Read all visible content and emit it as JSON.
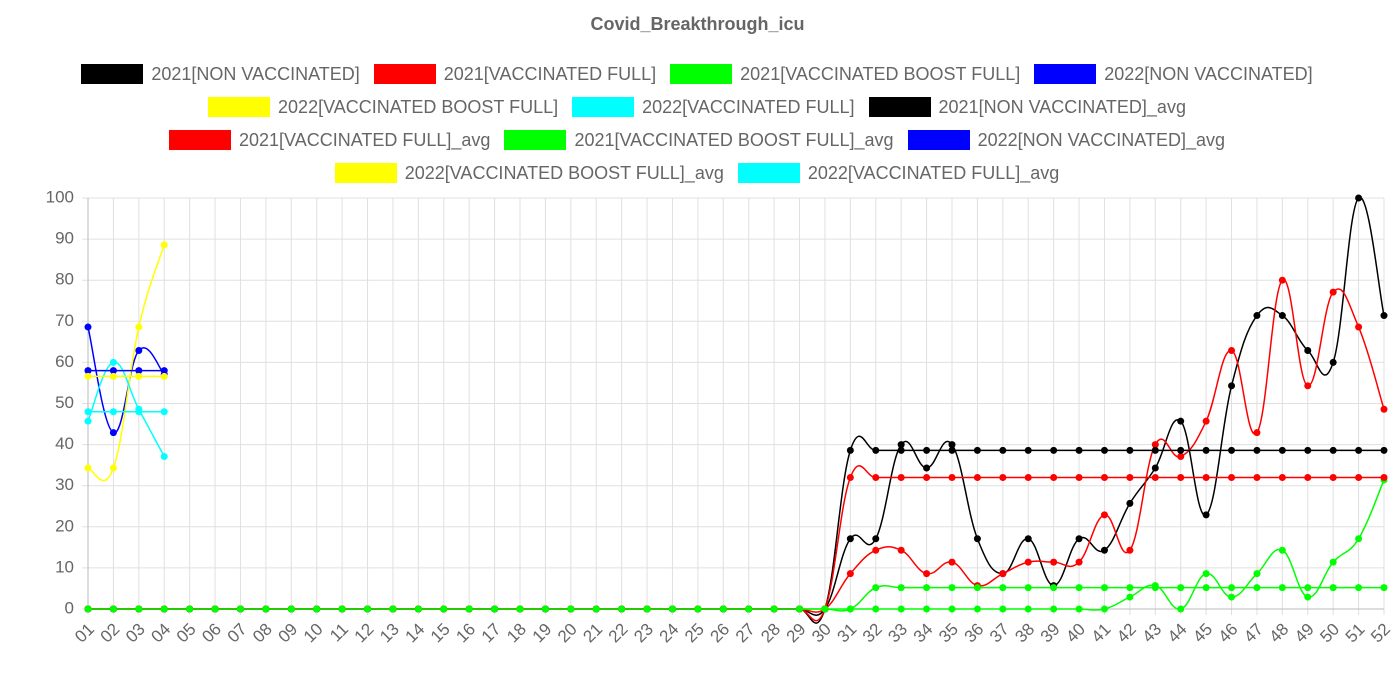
{
  "chart_data": {
    "type": "line",
    "title": "Covid_Breakthrough_icu",
    "categories": [
      "01",
      "02",
      "03",
      "04",
      "05",
      "06",
      "07",
      "08",
      "09",
      "10",
      "11",
      "12",
      "13",
      "14",
      "15",
      "16",
      "17",
      "18",
      "19",
      "20",
      "21",
      "22",
      "23",
      "24",
      "25",
      "26",
      "27",
      "28",
      "29",
      "30",
      "31",
      "32",
      "33",
      "34",
      "35",
      "36",
      "37",
      "38",
      "39",
      "40",
      "41",
      "42",
      "43",
      "44",
      "45",
      "46",
      "47",
      "48",
      "49",
      "50",
      "51",
      "52"
    ],
    "ylim": [
      0,
      100
    ],
    "yticks": [
      0,
      10,
      20,
      30,
      40,
      50,
      60,
      70,
      80,
      90,
      100
    ],
    "grid": true,
    "legend": "top",
    "series": [
      {
        "name": "2021[NON VACCINATED]",
        "color": "#000000",
        "values": [
          0,
          0,
          0,
          0,
          0,
          0,
          0,
          0,
          0,
          0,
          0,
          0,
          0,
          0,
          0,
          0,
          0,
          0,
          0,
          0,
          0,
          0,
          0,
          0,
          0,
          0,
          0,
          0,
          0,
          0,
          17.1,
          17.1,
          40,
          34.3,
          40,
          17.1,
          8.6,
          17.1,
          5.7,
          17.1,
          14.3,
          25.7,
          34.3,
          45.7,
          22.9,
          54.3,
          71.4,
          71.4,
          62.9,
          60,
          100,
          71.4
        ]
      },
      {
        "name": "2021[VACCINATED FULL]",
        "color": "#ff0000",
        "values": [
          0,
          0,
          0,
          0,
          0,
          0,
          0,
          0,
          0,
          0,
          0,
          0,
          0,
          0,
          0,
          0,
          0,
          0,
          0,
          0,
          0,
          0,
          0,
          0,
          0,
          0,
          0,
          0,
          0,
          0,
          8.6,
          14.3,
          14.3,
          8.6,
          11.4,
          5.7,
          8.6,
          11.4,
          11.4,
          11.4,
          22.9,
          14.3,
          40,
          37.1,
          45.7,
          62.9,
          42.9,
          80,
          54.3,
          77.1,
          68.6,
          48.6
        ]
      },
      {
        "name": "2021[VACCINATED BOOST FULL]",
        "color": "#00ff00",
        "values": [
          0,
          0,
          0,
          0,
          0,
          0,
          0,
          0,
          0,
          0,
          0,
          0,
          0,
          0,
          0,
          0,
          0,
          0,
          0,
          0,
          0,
          0,
          0,
          0,
          0,
          0,
          0,
          0,
          0,
          0,
          0,
          0,
          0,
          0,
          0,
          0,
          0,
          0,
          0,
          0,
          0,
          2.9,
          5.7,
          0,
          8.6,
          2.9,
          8.6,
          14.3,
          2.9,
          11.4,
          17.1,
          31.4
        ]
      },
      {
        "name": "2022[NON VACCINATED]",
        "color": "#0000ff",
        "values": [
          68.6,
          42.9,
          62.9,
          57.1,
          null,
          null,
          null,
          null,
          null,
          null,
          null,
          null,
          null,
          null,
          null,
          null,
          null,
          null,
          null,
          null,
          null,
          null,
          null,
          null,
          null,
          null,
          null,
          null,
          null,
          null,
          null,
          null,
          null,
          null,
          null,
          null,
          null,
          null,
          null,
          null,
          null,
          null,
          null,
          null,
          null,
          null,
          null,
          null,
          null,
          null,
          null,
          null
        ]
      },
      {
        "name": "2022[VACCINATED BOOST FULL]",
        "color": "#ffff00",
        "values": [
          34.3,
          34.3,
          68.6,
          88.6,
          null,
          null,
          null,
          null,
          null,
          null,
          null,
          null,
          null,
          null,
          null,
          null,
          null,
          null,
          null,
          null,
          null,
          null,
          null,
          null,
          null,
          null,
          null,
          null,
          null,
          null,
          null,
          null,
          null,
          null,
          null,
          null,
          null,
          null,
          null,
          null,
          null,
          null,
          null,
          null,
          null,
          null,
          null,
          null,
          null,
          null,
          null,
          null
        ]
      },
      {
        "name": "2022[VACCINATED FULL]",
        "color": "#00ffff",
        "values": [
          45.7,
          60,
          48.6,
          37.1,
          null,
          null,
          null,
          null,
          null,
          null,
          null,
          null,
          null,
          null,
          null,
          null,
          null,
          null,
          null,
          null,
          null,
          null,
          null,
          null,
          null,
          null,
          null,
          null,
          null,
          null,
          null,
          null,
          null,
          null,
          null,
          null,
          null,
          null,
          null,
          null,
          null,
          null,
          null,
          null,
          null,
          null,
          null,
          null,
          null,
          null,
          null,
          null
        ]
      },
      {
        "name": "2021[NON VACCINATED]_avg",
        "color": "#000000",
        "values": [
          0,
          0,
          0,
          0,
          0,
          0,
          0,
          0,
          0,
          0,
          0,
          0,
          0,
          0,
          0,
          0,
          0,
          0,
          0,
          0,
          0,
          0,
          0,
          0,
          0,
          0,
          0,
          0,
          0,
          0,
          38.6,
          38.6,
          38.6,
          38.6,
          38.6,
          38.6,
          38.6,
          38.6,
          38.6,
          38.6,
          38.6,
          38.6,
          38.6,
          38.6,
          38.6,
          38.6,
          38.6,
          38.6,
          38.6,
          38.6,
          38.6,
          38.6
        ]
      },
      {
        "name": "2021[VACCINATED FULL]_avg",
        "color": "#ff0000",
        "values": [
          0,
          0,
          0,
          0,
          0,
          0,
          0,
          0,
          0,
          0,
          0,
          0,
          0,
          0,
          0,
          0,
          0,
          0,
          0,
          0,
          0,
          0,
          0,
          0,
          0,
          0,
          0,
          0,
          0,
          0,
          32,
          32,
          32,
          32,
          32,
          32,
          32,
          32,
          32,
          32,
          32,
          32,
          32,
          32,
          32,
          32,
          32,
          32,
          32,
          32,
          32,
          32
        ]
      },
      {
        "name": "2021[VACCINATED BOOST FULL]_avg",
        "color": "#00ff00",
        "values": [
          0,
          0,
          0,
          0,
          0,
          0,
          0,
          0,
          0,
          0,
          0,
          0,
          0,
          0,
          0,
          0,
          0,
          0,
          0,
          0,
          0,
          0,
          0,
          0,
          0,
          0,
          0,
          0,
          0,
          0,
          0,
          5.2,
          5.2,
          5.2,
          5.2,
          5.2,
          5.2,
          5.2,
          5.2,
          5.2,
          5.2,
          5.2,
          5.2,
          5.2,
          5.2,
          5.2,
          5.2,
          5.2,
          5.2,
          5.2,
          5.2,
          5.2
        ]
      },
      {
        "name": "2022[NON VACCINATED]_avg",
        "color": "#0000ff",
        "values": [
          58,
          58,
          58,
          58,
          null,
          null,
          null,
          null,
          null,
          null,
          null,
          null,
          null,
          null,
          null,
          null,
          null,
          null,
          null,
          null,
          null,
          null,
          null,
          null,
          null,
          null,
          null,
          null,
          null,
          null,
          null,
          null,
          null,
          null,
          null,
          null,
          null,
          null,
          null,
          null,
          null,
          null,
          null,
          null,
          null,
          null,
          null,
          null,
          null,
          null,
          null,
          null
        ]
      },
      {
        "name": "2022[VACCINATED BOOST FULL]_avg",
        "color": "#ffff00",
        "values": [
          56.6,
          56.6,
          56.6,
          56.6,
          null,
          null,
          null,
          null,
          null,
          null,
          null,
          null,
          null,
          null,
          null,
          null,
          null,
          null,
          null,
          null,
          null,
          null,
          null,
          null,
          null,
          null,
          null,
          null,
          null,
          null,
          null,
          null,
          null,
          null,
          null,
          null,
          null,
          null,
          null,
          null,
          null,
          null,
          null,
          null,
          null,
          null,
          null,
          null,
          null,
          null,
          null,
          null
        ]
      },
      {
        "name": "2022[VACCINATED FULL]_avg",
        "color": "#00ffff",
        "values": [
          48,
          48,
          48,
          48,
          null,
          null,
          null,
          null,
          null,
          null,
          null,
          null,
          null,
          null,
          null,
          null,
          null,
          null,
          null,
          null,
          null,
          null,
          null,
          null,
          null,
          null,
          null,
          null,
          null,
          null,
          null,
          null,
          null,
          null,
          null,
          null,
          null,
          null,
          null,
          null,
          null,
          null,
          null,
          null,
          null,
          null,
          null,
          null,
          null,
          null,
          null,
          null
        ]
      }
    ]
  }
}
